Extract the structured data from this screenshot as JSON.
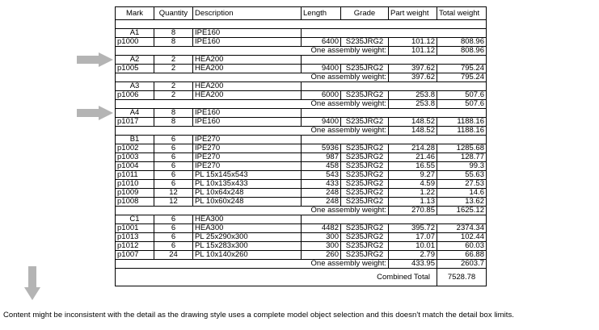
{
  "headers": [
    "Mark",
    "Quantity",
    "Description",
    "Length",
    "Grade",
    "Part weight",
    "Total weight"
  ],
  "rows": [
    {
      "type": "assembly",
      "mark": "A1",
      "qty": "8",
      "desc": "IPE160"
    },
    {
      "type": "part",
      "mark": "p1000",
      "qty": "8",
      "desc": "IPE160",
      "length": "6400",
      "grade": "S235JRG2",
      "part_weight": "101.12",
      "total_weight": "808.96"
    },
    {
      "type": "summary",
      "label": "One assembly weight:",
      "part_weight": "101.12",
      "total_weight": "808.96"
    },
    {
      "type": "assembly",
      "mark": "A2",
      "qty": "2",
      "desc": "HEA200",
      "arrow": true
    },
    {
      "type": "part",
      "mark": "p1005",
      "qty": "2",
      "desc": "HEA200",
      "length": "9400",
      "grade": "S235JRG2",
      "part_weight": "397.62",
      "total_weight": "795.24"
    },
    {
      "type": "summary",
      "label": "One assembly weight:",
      "part_weight": "397.62",
      "total_weight": "795.24"
    },
    {
      "type": "assembly",
      "mark": "A3",
      "qty": "2",
      "desc": "HEA200"
    },
    {
      "type": "part",
      "mark": "p1006",
      "qty": "2",
      "desc": "HEA200",
      "length": "6000",
      "grade": "S235JRG2",
      "part_weight": "253.8",
      "total_weight": "507.6"
    },
    {
      "type": "summary",
      "label": "One assembly weight:",
      "part_weight": "253.8",
      "total_weight": "507.6"
    },
    {
      "type": "assembly",
      "mark": "A4",
      "qty": "8",
      "desc": "IPE160",
      "arrow": true
    },
    {
      "type": "part",
      "mark": "p1017",
      "qty": "8",
      "desc": "IPE160",
      "length": "9400",
      "grade": "S235JRG2",
      "part_weight": "148.52",
      "total_weight": "1188.16"
    },
    {
      "type": "summary",
      "label": "One assembly weight:",
      "part_weight": "148.52",
      "total_weight": "1188.16"
    },
    {
      "type": "assembly",
      "mark": "B1",
      "qty": "6",
      "desc": "IPE270"
    },
    {
      "type": "part",
      "mark": "p1002",
      "qty": "6",
      "desc": "IPE270",
      "length": "5936",
      "grade": "S235JRG2",
      "part_weight": "214.28",
      "total_weight": "1285.68"
    },
    {
      "type": "part",
      "mark": "p1003",
      "qty": "6",
      "desc": "IPE270",
      "length": "987",
      "grade": "S235JRG2",
      "part_weight": "21.46",
      "total_weight": "128.77"
    },
    {
      "type": "part",
      "mark": "p1004",
      "qty": "6",
      "desc": "IPE270",
      "length": "458",
      "grade": "S235JRG2",
      "part_weight": "16.55",
      "total_weight": "99.3"
    },
    {
      "type": "part",
      "mark": "p1011",
      "qty": "6",
      "desc": "PL 15x145x543",
      "length": "543",
      "grade": "S235JRG2",
      "part_weight": "9.27",
      "total_weight": "55.63"
    },
    {
      "type": "part",
      "mark": "p1010",
      "qty": "6",
      "desc": "PL 10x135x433",
      "length": "433",
      "grade": "S235JRG2",
      "part_weight": "4.59",
      "total_weight": "27.53"
    },
    {
      "type": "part",
      "mark": "p1009",
      "qty": "12",
      "desc": "PL 10x64x248",
      "length": "248",
      "grade": "S235JRG2",
      "part_weight": "1.22",
      "total_weight": "14.6"
    },
    {
      "type": "part",
      "mark": "p1008",
      "qty": "12",
      "desc": "PL 10x60x248",
      "length": "248",
      "grade": "S235JRG2",
      "part_weight": "1.13",
      "total_weight": "13.62"
    },
    {
      "type": "summary",
      "label": "One assembly weight:",
      "part_weight": "270.85",
      "total_weight": "1625.12"
    },
    {
      "type": "assembly",
      "mark": "C1",
      "qty": "6",
      "desc": "HEA300"
    },
    {
      "type": "part",
      "mark": "p1001",
      "qty": "6",
      "desc": "HEA300",
      "length": "4482",
      "grade": "S235JRG2",
      "part_weight": "395.72",
      "total_weight": "2374.34"
    },
    {
      "type": "part",
      "mark": "p1013",
      "qty": "6",
      "desc": "PL 25x290x300",
      "length": "300",
      "grade": "S235JRG2",
      "part_weight": "17.07",
      "total_weight": "102.44"
    },
    {
      "type": "part",
      "mark": "p1012",
      "qty": "6",
      "desc": "PL 15x283x300",
      "length": "300",
      "grade": "S235JRG2",
      "part_weight": "10.01",
      "total_weight": "60.03"
    },
    {
      "type": "part",
      "mark": "p1007",
      "qty": "24",
      "desc": "PL 10x140x260",
      "length": "260",
      "grade": "S235JRG2",
      "part_weight": "2.79",
      "total_weight": "66.88"
    },
    {
      "type": "summary",
      "label": "One assembly weight:",
      "part_weight": "433.95",
      "total_weight": "2603.7"
    }
  ],
  "combined": {
    "label": "Combined Total",
    "value": "7528.78"
  },
  "footer": "Content might be inconsistent with the detail as the drawing style uses a complete model object selection and this doesn't match the detail box limits.",
  "colors": {
    "arrow": "#b4b4b4",
    "line": "#000000"
  }
}
